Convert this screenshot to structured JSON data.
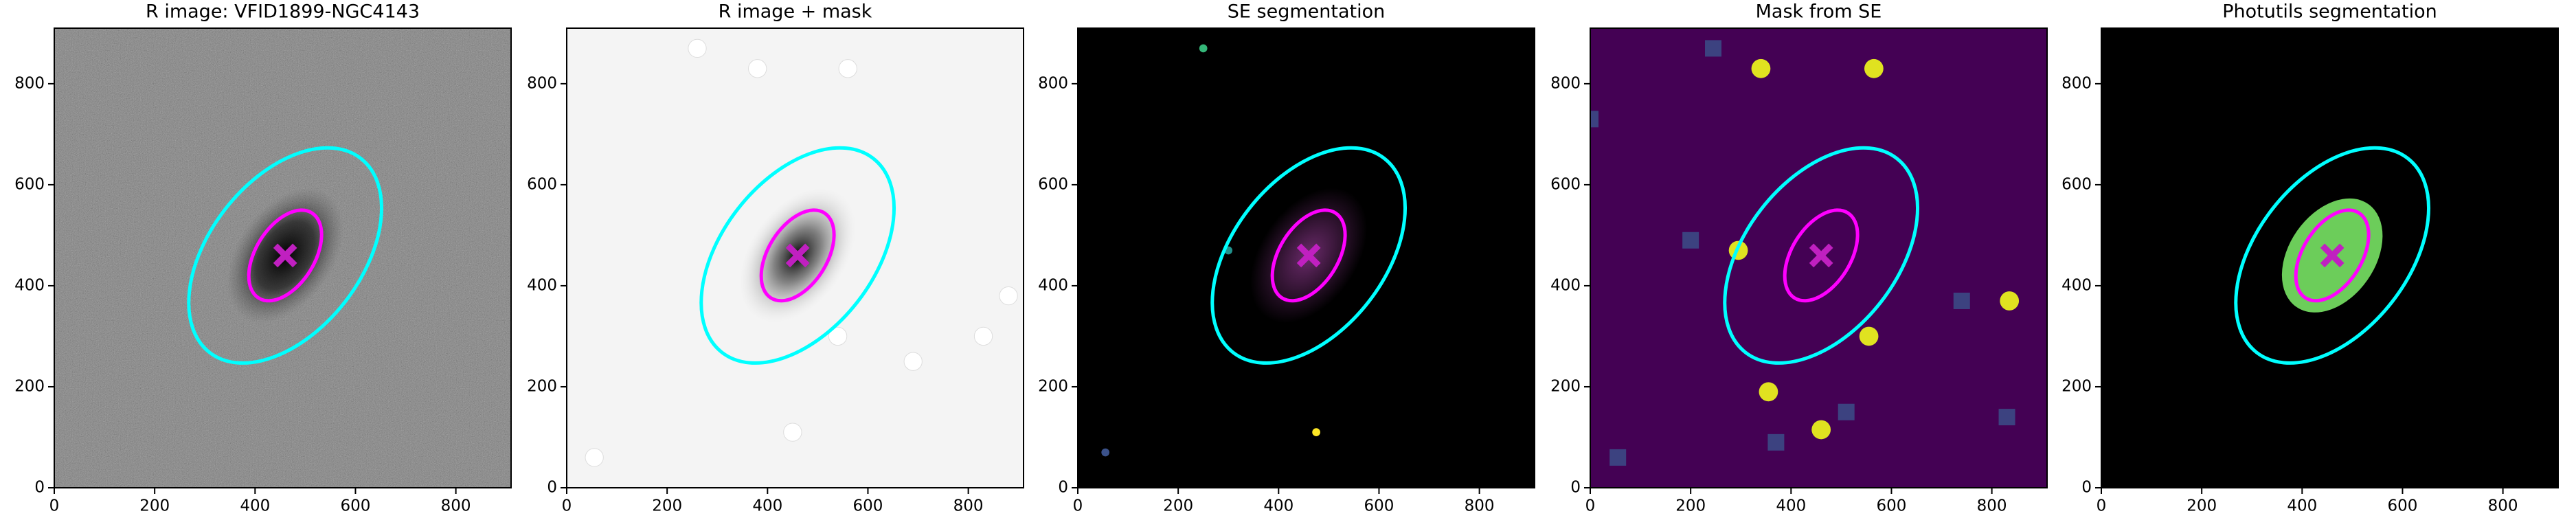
{
  "chart_data": [
    {
      "type": "image",
      "title": "R image: VFID1899-NGC4143",
      "background": "#5a5a5a",
      "xlim": [
        0,
        910
      ],
      "ylim": [
        0,
        910
      ],
      "xticks": [
        0,
        200,
        400,
        600,
        800
      ],
      "yticks": [
        0,
        200,
        400,
        600,
        800
      ],
      "ellipses": [
        {
          "center": [
            460,
            460
          ],
          "a": 245,
          "b": 150,
          "angle": 52,
          "color": "#00ffff"
        },
        {
          "center": [
            460,
            460
          ],
          "a": 100,
          "b": 58,
          "angle": 58,
          "color": "#ff00ff"
        }
      ],
      "marker": {
        "x": 460,
        "y": 460,
        "color": "#c020c0"
      }
    },
    {
      "type": "image",
      "title": "R image + mask",
      "background": "#f4f4f4",
      "xlim": [
        0,
        910
      ],
      "ylim": [
        0,
        910
      ],
      "xticks": [
        0,
        200,
        400,
        600,
        800
      ],
      "yticks": [
        0,
        200,
        400,
        600,
        800
      ],
      "ellipses": [
        {
          "center": [
            460,
            460
          ],
          "a": 245,
          "b": 150,
          "angle": 52,
          "color": "#00ffff"
        },
        {
          "center": [
            460,
            460
          ],
          "a": 100,
          "b": 58,
          "angle": 58,
          "color": "#ff00ff"
        }
      ],
      "marker": {
        "x": 460,
        "y": 460,
        "color": "#c020c0"
      }
    },
    {
      "type": "image",
      "title": "SE segmentation",
      "background": "#000000",
      "xlim": [
        0,
        910
      ],
      "ylim": [
        0,
        910
      ],
      "xticks": [
        0,
        200,
        400,
        600,
        800
      ],
      "yticks": [
        0,
        200,
        400,
        600,
        800
      ],
      "ellipses": [
        {
          "center": [
            460,
            460
          ],
          "a": 245,
          "b": 150,
          "angle": 52,
          "color": "#00ffff"
        },
        {
          "center": [
            460,
            460
          ],
          "a": 100,
          "b": 58,
          "angle": 58,
          "color": "#ff00ff"
        }
      ],
      "marker": {
        "x": 460,
        "y": 460,
        "color": "#c020c0"
      }
    },
    {
      "type": "image",
      "title": "Mask from SE",
      "background": "#440154",
      "xlim": [
        0,
        910
      ],
      "ylim": [
        0,
        910
      ],
      "xticks": [
        0,
        200,
        400,
        600,
        800
      ],
      "yticks": [
        0,
        200,
        400,
        600,
        800
      ],
      "ellipses": [
        {
          "center": [
            460,
            460
          ],
          "a": 245,
          "b": 150,
          "angle": 52,
          "color": "#00ffff"
        },
        {
          "center": [
            460,
            460
          ],
          "a": 100,
          "b": 58,
          "angle": 58,
          "color": "#ff00ff"
        }
      ],
      "marker": {
        "x": 460,
        "y": 460,
        "color": "#c020c0"
      }
    },
    {
      "type": "image",
      "title": "Photutils segmentation",
      "background": "#000000",
      "xlim": [
        0,
        910
      ],
      "ylim": [
        0,
        910
      ],
      "xticks": [
        0,
        200,
        400,
        600,
        800
      ],
      "yticks": [
        0,
        200,
        400,
        600,
        800
      ],
      "ellipses": [
        {
          "center": [
            460,
            460
          ],
          "a": 245,
          "b": 150,
          "angle": 52,
          "color": "#00ffff"
        },
        {
          "center": [
            460,
            460
          ],
          "a": 100,
          "b": 58,
          "angle": 58,
          "color": "#ff00ff"
        }
      ],
      "marker": {
        "x": 460,
        "y": 460,
        "color": "#c020c0"
      }
    }
  ]
}
